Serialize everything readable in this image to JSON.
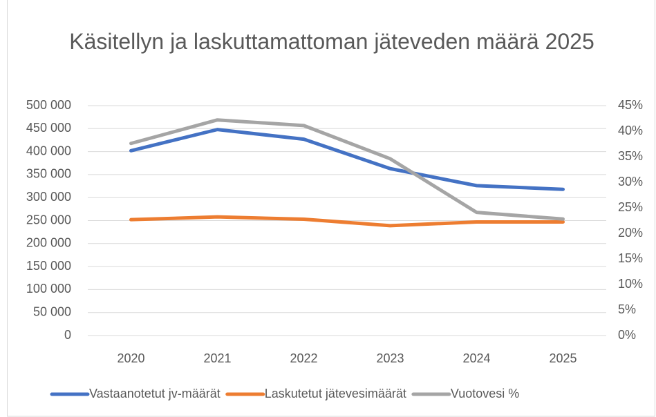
{
  "chart_data": {
    "type": "line",
    "title": "Käsitellyn ja laskuttamattoman jäteveden määrä 2025",
    "categories": [
      "2020",
      "2021",
      "2022",
      "2023",
      "2024",
      "2025"
    ],
    "series": [
      {
        "name": "Vastaanotetut jv-määrät",
        "color": "#4472c4",
        "values": [
          402000,
          448000,
          427000,
          363000,
          326000,
          318000
        ]
      },
      {
        "name": "Laskutetut jätevesimäärät",
        "color": "#ed7d31",
        "values": [
          252000,
          258000,
          253000,
          239000,
          247000,
          247000
        ]
      },
      {
        "name": "Vuotovesi %",
        "color": "#a5a5a5",
        "axis": "y2",
        "values": [
          37.6,
          42.2,
          41.1,
          34.6,
          24.1,
          22.8
        ]
      }
    ],
    "ylim": [
      0,
      500000
    ],
    "yticks": [
      0,
      {
        "value": 50000,
        "label": "50 000"
      },
      {
        "value": 100000,
        "label": "100 000"
      },
      {
        "value": 150000,
        "label": "150 000"
      },
      {
        "value": 200000,
        "label": "200 000"
      },
      {
        "value": 250000,
        "label": "250 000"
      },
      {
        "value": 300000,
        "label": "300 000"
      },
      {
        "value": 350000,
        "label": "350 000"
      },
      {
        "value": 400000,
        "label": "400 000"
      },
      {
        "value": 450000,
        "label": "450 000"
      },
      {
        "value": 500000,
        "label": "500 000"
      }
    ],
    "y2lim": [
      0,
      45
    ],
    "y2ticks": [
      {
        "value": 0,
        "label": "0%"
      },
      {
        "value": 5,
        "label": "5%"
      },
      {
        "value": 10,
        "label": "10%"
      },
      {
        "value": 15,
        "label": "15%"
      },
      {
        "value": 20,
        "label": "20%"
      },
      {
        "value": 25,
        "label": "25%"
      },
      {
        "value": 30,
        "label": "30%"
      },
      {
        "value": 35,
        "label": "35%"
      },
      {
        "value": 40,
        "label": "40%"
      },
      {
        "value": 45,
        "label": "45%"
      }
    ],
    "grid": true,
    "legend": "bottom"
  }
}
